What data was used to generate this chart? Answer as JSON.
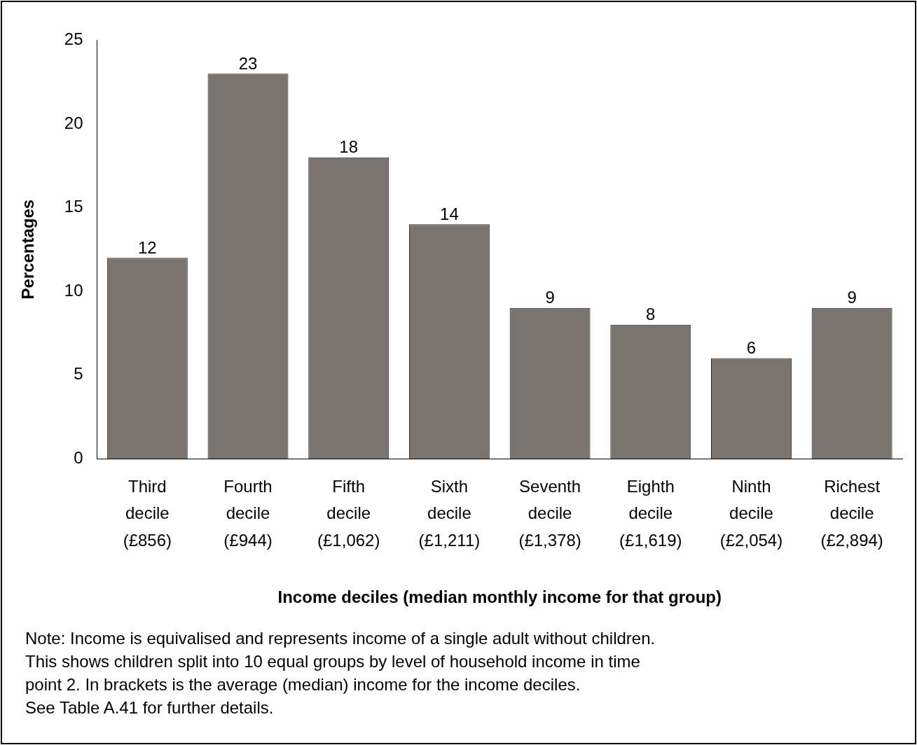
{
  "chart_data": {
    "type": "bar",
    "ylabel": "Percentages",
    "xlabel": "Income deciles (median monthly income for that group)",
    "categories": [
      "Third\ndecile\n(£856)",
      "Fourth\ndecile\n(£944)",
      "Fifth\ndecile\n(£1,062)",
      "Sixth\ndecile\n(£1,211)",
      "Seventh\ndecile\n(£1,378)",
      "Eighth\ndecile\n(£1,619)",
      "Ninth\ndecile\n(£2,054)",
      "Richest\ndecile\n(£2,894)"
    ],
    "values": [
      12,
      23,
      18,
      14,
      9,
      8,
      6,
      9
    ],
    "color": "#7a7370",
    "ylim": [
      0,
      25
    ],
    "yticks": [
      0,
      5,
      10,
      15,
      20,
      25
    ],
    "grid": false,
    "legend": false,
    "data_labels": true,
    "annotations": [
      "Note: Income is equivalised and represents income of a single adult without children.\nThis shows children split into 10 equal groups by level of household income in time\npoint 2. In brackets is the average (median) income for the income deciles.\nSee Table A.41 for further details."
    ]
  }
}
